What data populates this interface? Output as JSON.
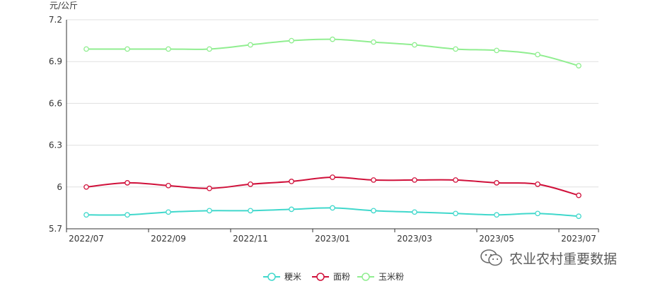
{
  "chart_data": {
    "type": "line",
    "y_unit": "元/公斤",
    "ylim": [
      5.7,
      7.2
    ],
    "y_ticks": [
      "7.2",
      "6.9",
      "6.6",
      "6.3",
      "6",
      "5.7"
    ],
    "x_tick_labels": [
      "2022/07",
      "2022/09",
      "2022/11",
      "2023/01",
      "2023/03",
      "2023/05",
      "2023/07"
    ],
    "x": [
      "2022/07",
      "2022/08",
      "2022/09",
      "2022/10",
      "2022/11",
      "2022/12",
      "2023/01",
      "2023/02",
      "2023/03",
      "2023/04",
      "2023/05",
      "2023/06",
      "2023/07"
    ],
    "grid": true,
    "legend_position": "bottom",
    "series": [
      {
        "name": "粳米",
        "color": "#40d8cc",
        "values": [
          5.8,
          5.8,
          5.82,
          5.83,
          5.83,
          5.84,
          5.85,
          5.83,
          5.82,
          5.81,
          5.8,
          5.81,
          5.79
        ]
      },
      {
        "name": "面粉",
        "color": "#d0103a",
        "values": [
          6.0,
          6.03,
          6.01,
          5.99,
          6.02,
          6.04,
          6.07,
          6.05,
          6.05,
          6.05,
          6.03,
          6.02,
          5.94
        ]
      },
      {
        "name": "玉米粉",
        "color": "#90ee90",
        "values": [
          6.99,
          6.99,
          6.99,
          6.99,
          7.02,
          7.05,
          7.06,
          7.04,
          7.02,
          6.99,
          6.98,
          6.95,
          6.87
        ]
      }
    ]
  },
  "watermark": {
    "text": "农业农村重要数据",
    "icon": "wechat-icon"
  }
}
